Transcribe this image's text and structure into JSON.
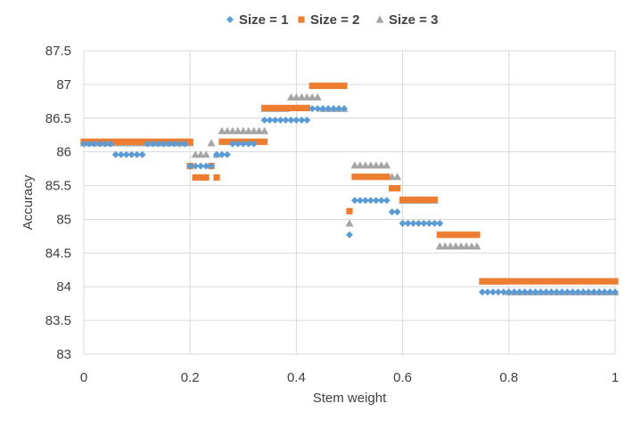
{
  "chart_data": {
    "type": "scatter",
    "title": "",
    "xlabel": "Stem weight",
    "ylabel": "Accuracy",
    "xlim": [
      0,
      1
    ],
    "ylim": [
      83,
      87.5
    ],
    "x_ticks": [
      0,
      0.2,
      0.4,
      0.6,
      0.8,
      1
    ],
    "x_tick_labels": [
      "0",
      "0.2",
      "0.4",
      "0.6",
      "0.8",
      "1"
    ],
    "y_ticks": [
      83,
      83.5,
      84,
      84.5,
      85,
      85.5,
      86,
      86.5,
      87,
      87.5
    ],
    "y_tick_labels": [
      "83",
      "83.5",
      "84",
      "84.5",
      "85",
      "85.5",
      "86",
      "86.5",
      "87",
      "87.5"
    ],
    "grid": true,
    "legend_position": "top",
    "series": [
      {
        "name": "Size = 1",
        "marker": "diamond",
        "color": "#5B9BD5",
        "runs": [
          [
            0.0,
            0.05,
            86.12
          ],
          [
            0.06,
            0.11,
            85.96
          ],
          [
            0.12,
            0.19,
            86.12
          ],
          [
            0.2,
            0.24,
            85.79
          ],
          [
            0.25,
            0.27,
            85.96
          ],
          [
            0.28,
            0.32,
            86.12
          ],
          [
            0.34,
            0.42,
            86.47
          ],
          [
            0.43,
            0.49,
            86.64
          ],
          [
            0.5,
            0.5,
            84.77
          ],
          [
            0.51,
            0.57,
            85.28
          ],
          [
            0.58,
            0.59,
            85.11
          ],
          [
            0.6,
            0.67,
            84.94
          ],
          [
            0.75,
            1.0,
            83.92
          ]
        ]
      },
      {
        "name": "Size = 2",
        "marker": "square",
        "color": "#ED7D31",
        "runs": [
          [
            0.0,
            0.2,
            86.15
          ],
          [
            0.2,
            0.2,
            85.79
          ],
          [
            0.21,
            0.23,
            85.62
          ],
          [
            0.24,
            0.24,
            85.79
          ],
          [
            0.25,
            0.25,
            85.62
          ],
          [
            0.26,
            0.34,
            86.15
          ],
          [
            0.34,
            0.42,
            86.65
          ],
          [
            0.43,
            0.49,
            86.98
          ],
          [
            0.5,
            0.5,
            85.12
          ],
          [
            0.51,
            0.57,
            85.63
          ],
          [
            0.58,
            0.59,
            85.46
          ],
          [
            0.6,
            0.66,
            85.29
          ],
          [
            0.67,
            0.74,
            84.77
          ],
          [
            0.75,
            1.0,
            84.08
          ]
        ]
      },
      {
        "name": "Size = 3",
        "marker": "triangle",
        "color": "#A5A5A5",
        "runs": [
          [
            0.0,
            0.2,
            86.13
          ],
          [
            0.21,
            0.23,
            85.96
          ],
          [
            0.24,
            0.24,
            86.13
          ],
          [
            0.25,
            0.25,
            85.96
          ],
          [
            0.26,
            0.34,
            86.31
          ],
          [
            0.34,
            0.38,
            86.64
          ],
          [
            0.39,
            0.44,
            86.81
          ],
          [
            0.45,
            0.49,
            86.64
          ],
          [
            0.5,
            0.5,
            84.94
          ],
          [
            0.51,
            0.57,
            85.8
          ],
          [
            0.58,
            0.59,
            85.63
          ],
          [
            0.6,
            0.66,
            85.28
          ],
          [
            0.67,
            0.74,
            84.6
          ],
          [
            0.75,
            0.79,
            84.08
          ],
          [
            0.8,
            1.0,
            83.92
          ]
        ]
      }
    ]
  }
}
